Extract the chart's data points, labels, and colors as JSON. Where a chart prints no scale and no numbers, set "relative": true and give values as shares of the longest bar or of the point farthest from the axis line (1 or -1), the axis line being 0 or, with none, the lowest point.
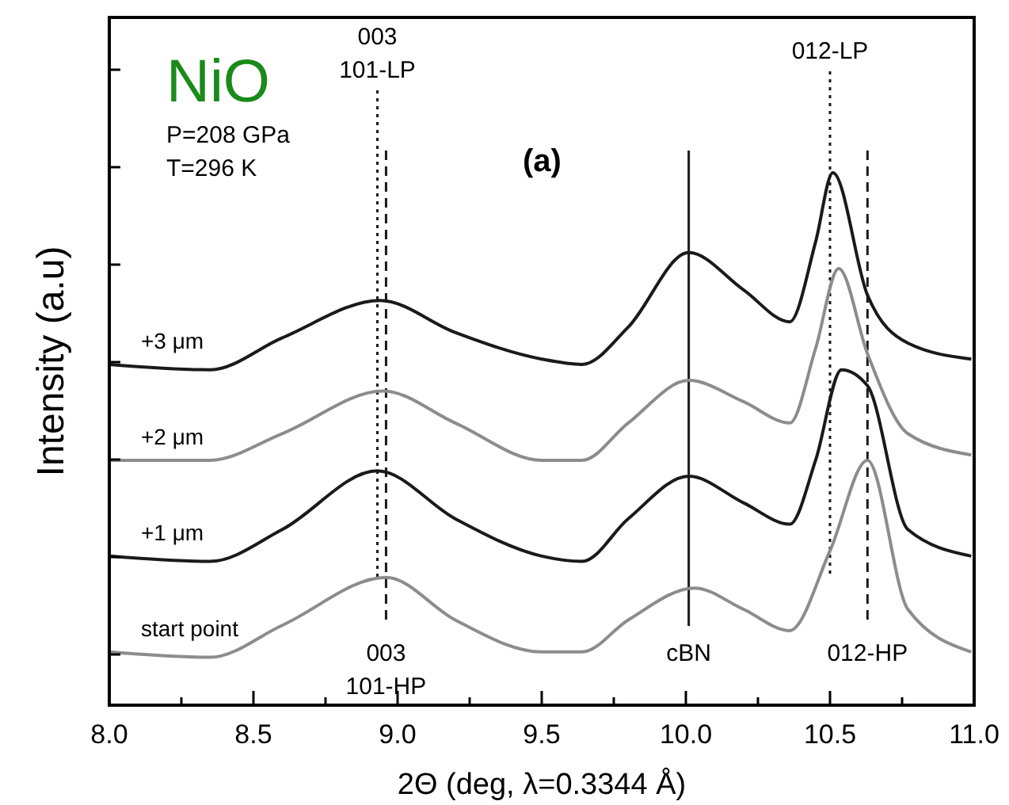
{
  "chart_data": {
    "type": "line",
    "title": "NiO",
    "xlabel": "2Θ  (deg, λ=0.3344 Å)",
    "ylabel": "Intensity  (a.u)",
    "relative": true,
    "xlim": [
      8.0,
      11.0
    ],
    "xticks": [
      {
        "value": 8.0,
        "label": "8.0"
      },
      {
        "value": 8.25,
        "label": null
      },
      {
        "value": 8.5,
        "label": "8.5"
      },
      {
        "value": 8.75,
        "label": null
      },
      {
        "value": 9.0,
        "label": "9.0"
      },
      {
        "value": 9.25,
        "label": null
      },
      {
        "value": 9.5,
        "label": "9.5"
      },
      {
        "value": 9.75,
        "label": null
      },
      {
        "value": 10.0,
        "label": "10.0"
      },
      {
        "value": 10.25,
        "label": null
      },
      {
        "value": 10.5,
        "label": "10.5"
      },
      {
        "value": 10.75,
        "label": null
      },
      {
        "value": 11.0,
        "label": "11.0"
      }
    ],
    "grid": false,
    "marker": "none",
    "series": [
      {
        "name": "+3 μm",
        "color": "#1a1a1a",
        "x": [
          8.0,
          8.35,
          8.6,
          8.94,
          9.2,
          9.5,
          9.64,
          9.8,
          10.01,
          10.2,
          10.36,
          10.45,
          10.51,
          10.63,
          10.77,
          10.99
        ],
        "values": [
          0.64,
          0.63,
          0.69,
          0.76,
          0.7,
          0.65,
          0.64,
          0.71,
          0.85,
          0.78,
          0.72,
          0.87,
          1.0,
          0.77,
          0.68,
          0.65
        ]
      },
      {
        "name": "+2 μm",
        "color": "#8c8c8c",
        "x": [
          8.0,
          8.35,
          8.6,
          8.95,
          9.2,
          9.5,
          9.64,
          9.8,
          10.01,
          10.2,
          10.36,
          10.45,
          10.53,
          10.63,
          10.77,
          10.99
        ],
        "values": [
          0.46,
          0.46,
          0.51,
          0.59,
          0.53,
          0.46,
          0.46,
          0.53,
          0.61,
          0.57,
          0.53,
          0.67,
          0.82,
          0.66,
          0.51,
          0.47
        ]
      },
      {
        "name": "+1 μm",
        "color": "#1a1a1a",
        "x": [
          8.0,
          8.35,
          8.6,
          8.93,
          9.2,
          9.5,
          9.64,
          9.8,
          10.01,
          10.2,
          10.36,
          10.45,
          10.54,
          10.63,
          10.77,
          10.99
        ],
        "values": [
          0.28,
          0.27,
          0.33,
          0.44,
          0.35,
          0.28,
          0.27,
          0.35,
          0.43,
          0.38,
          0.34,
          0.46,
          0.63,
          0.6,
          0.33,
          0.28
        ]
      },
      {
        "name": "start point",
        "color": "#8c8c8c",
        "x": [
          8.0,
          8.35,
          8.6,
          8.96,
          9.2,
          9.5,
          9.64,
          9.8,
          10.03,
          10.2,
          10.36,
          10.5,
          10.63,
          10.77,
          10.99
        ],
        "values": [
          0.1,
          0.09,
          0.15,
          0.24,
          0.16,
          0.1,
          0.1,
          0.16,
          0.22,
          0.18,
          0.14,
          0.29,
          0.46,
          0.18,
          0.1
        ]
      }
    ],
    "ref_lines": [
      {
        "axis": "x",
        "value": 8.93,
        "label": "003\n101-LP",
        "line_style": "dotted",
        "color": "#1a1a1a"
      },
      {
        "axis": "x",
        "value": 8.96,
        "label": "003\n101-HP",
        "line_style": "dashed",
        "color": "#1a1a1a"
      },
      {
        "axis": "x",
        "value": 10.01,
        "label": "cBN",
        "line_style": "solid",
        "color": "#1a1a1a"
      },
      {
        "axis": "x",
        "value": 10.5,
        "label": "012-LP",
        "line_style": "dotted",
        "color": "#1a1a1a"
      },
      {
        "axis": "x",
        "value": 10.63,
        "label": "012-HP",
        "line_style": "dashed",
        "color": "#1a1a1a"
      }
    ],
    "annotations": [
      "P=208 GPa",
      "T=296 K",
      "(a)"
    ]
  }
}
